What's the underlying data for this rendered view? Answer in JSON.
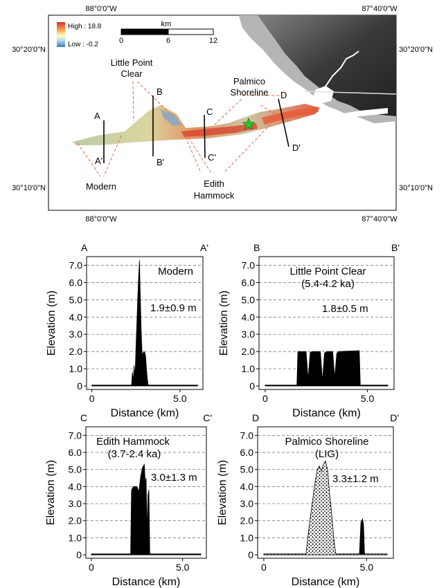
{
  "map": {
    "coords": {
      "top_left": "88°0'0\"W",
      "top_right": "87°40'0\"W",
      "bottom_left": "88°0'0\"W",
      "bottom_right": "87°40'0\"W",
      "left_upper": "30°20'0\"N",
      "left_lower": "30°10'0\"N",
      "right_upper": "30°20'0\"N",
      "right_lower": "30°10'0\"N"
    },
    "legend": {
      "high": "High : 18.8",
      "low": "Low : -0.2"
    },
    "scale": {
      "unit": "km",
      "ticks": [
        "0",
        "6",
        "12"
      ]
    },
    "labels": {
      "little_point_clear": [
        "Little Point",
        "Clear"
      ],
      "palmico": [
        "Palmico",
        "Shoreline"
      ],
      "modern": "Modern",
      "edith": [
        "Edith",
        "Hammock"
      ]
    },
    "transects": {
      "A": "A",
      "A2": "A'",
      "B": "B",
      "B2": "B'",
      "C": "C",
      "C2": "C'",
      "D": "D",
      "D2": "D'"
    },
    "colors": {
      "ridge_red": "#d8442c",
      "ridge_yellow": "#e7d98a",
      "ridge_blue": "#7fa6c9",
      "dashed": "#e8613a"
    }
  },
  "chart_data": [
    {
      "type": "area",
      "corner_left": "A",
      "corner_right": "A'",
      "title": "Modern",
      "subtitle": "",
      "annotation": "1.9±0.9 m",
      "xlabel": "Distance (km)",
      "ylabel": "Elevation (m)",
      "xlim": [
        -0.3,
        6.3
      ],
      "ylim": [
        -0.2,
        7.5
      ],
      "xticks": [
        0,
        5.0
      ],
      "xtick_labels": [
        "0",
        "5.0"
      ],
      "yticks": [
        0,
        1.0,
        2.0,
        3.0,
        4.0,
        5.0,
        6.0,
        7.0
      ],
      "ytick_labels": [
        "0",
        "1.0",
        "2.0",
        "3.0",
        "4.0",
        "5.0",
        "6.0",
        "7.0"
      ],
      "fill": "solid",
      "x": [
        0.0,
        2.25,
        2.3,
        2.35,
        2.4,
        2.45,
        2.5,
        2.55,
        2.6,
        2.65,
        2.7,
        2.75,
        2.8,
        2.85,
        2.9,
        2.95,
        3.0,
        3.05,
        3.1,
        3.15,
        3.2,
        6.0
      ],
      "y": [
        0.05,
        0.05,
        0.8,
        0.3,
        1.2,
        0.5,
        2.2,
        3.5,
        5.0,
        6.3,
        7.3,
        5.2,
        3.2,
        1.8,
        1.9,
        2.0,
        1.95,
        1.7,
        1.0,
        0.4,
        0.05,
        0.05
      ]
    },
    {
      "type": "area",
      "corner_left": "B",
      "corner_right": "B'",
      "title": "Little Point Clear",
      "subtitle": "(5.4-4.2 ka)",
      "annotation": "1.8±0.5 m",
      "xlabel": "Distance (km)",
      "ylabel": "Elevation (m)",
      "xlim": [
        -0.3,
        6.3
      ],
      "ylim": [
        -0.2,
        7.5
      ],
      "xticks": [
        0,
        5.0
      ],
      "xtick_labels": [
        "0",
        "5.0"
      ],
      "yticks": [
        0,
        1.0,
        2.0,
        3.0,
        4.0,
        5.0,
        6.0,
        7.0
      ],
      "ytick_labels": [
        "0",
        "1.0",
        "2.0",
        "3.0",
        "4.0",
        "5.0",
        "6.0",
        "7.0"
      ],
      "fill": "solid",
      "x": [
        0.0,
        1.55,
        1.6,
        2.0,
        2.1,
        2.2,
        2.3,
        2.7,
        2.8,
        2.9,
        3.0,
        3.3,
        3.4,
        3.5,
        3.6,
        4.6,
        4.65,
        6.0
      ],
      "y": [
        0.05,
        0.05,
        2.0,
        2.0,
        0.4,
        1.95,
        2.0,
        2.0,
        0.3,
        1.9,
        2.0,
        2.0,
        0.5,
        1.9,
        2.0,
        2.05,
        0.05,
        0.05
      ]
    },
    {
      "type": "area",
      "corner_left": "C",
      "corner_right": "C'",
      "title": "Edith Hammock",
      "subtitle": "(3.7-2.4 ka)",
      "annotation": "3.0±1.3 m",
      "xlabel": "Distance (km)",
      "ylabel": "Elevation (m)",
      "xlim": [
        -0.3,
        6.3
      ],
      "ylim": [
        -0.2,
        7.5
      ],
      "xticks": [
        0,
        5.0
      ],
      "xtick_labels": [
        "0",
        "5.0"
      ],
      "yticks": [
        0,
        1.0,
        2.0,
        3.0,
        4.0,
        5.0,
        6.0,
        7.0
      ],
      "ytick_labels": [
        "0",
        "1.0",
        "2.0",
        "3.0",
        "4.0",
        "5.0",
        "6.0",
        "7.0"
      ],
      "fill": "solid",
      "x": [
        0.0,
        2.15,
        2.2,
        2.3,
        2.5,
        2.6,
        2.7,
        2.8,
        2.9,
        2.95,
        3.0,
        3.05,
        3.1,
        3.15,
        3.2,
        6.0
      ],
      "y": [
        0.05,
        0.05,
        3.8,
        4.0,
        4.0,
        3.7,
        4.6,
        5.1,
        5.3,
        4.2,
        4.5,
        1.3,
        3.5,
        3.8,
        0.05,
        0.05
      ]
    },
    {
      "type": "area",
      "corner_left": "D",
      "corner_right": "D'",
      "title": "Palmico Shoreline",
      "subtitle": "(LIG)",
      "annotation": "3.3±1.2 m",
      "xlabel": "Distance (km)",
      "ylabel": "Elevation (m)",
      "xlim": [
        -0.3,
        6.3
      ],
      "ylim": [
        -0.2,
        7.5
      ],
      "xticks": [
        0,
        5.0
      ],
      "xtick_labels": [
        "0",
        "5.0"
      ],
      "yticks": [
        0,
        1.0,
        2.0,
        3.0,
        4.0,
        5.0,
        6.0,
        7.0
      ],
      "ytick_labels": [
        "0",
        "1.0",
        "2.0",
        "3.0",
        "4.0",
        "5.0",
        "6.0",
        "7.0"
      ],
      "fill": "dotted",
      "x": [
        0.0,
        2.05,
        2.2,
        2.35,
        2.5,
        2.6,
        2.7,
        2.8,
        2.9,
        3.0,
        3.1,
        3.2,
        3.3,
        3.4,
        3.5,
        6.0
      ],
      "y": [
        0.05,
        0.05,
        1.6,
        3.0,
        4.3,
        5.0,
        5.2,
        4.9,
        5.3,
        5.5,
        5.0,
        3.6,
        2.4,
        1.0,
        0.05,
        0.05
      ],
      "secondary": {
        "x": [
          4.65,
          4.72,
          4.8,
          4.85,
          4.9
        ],
        "y": [
          0.05,
          1.9,
          2.1,
          1.8,
          0.05
        ]
      }
    }
  ]
}
